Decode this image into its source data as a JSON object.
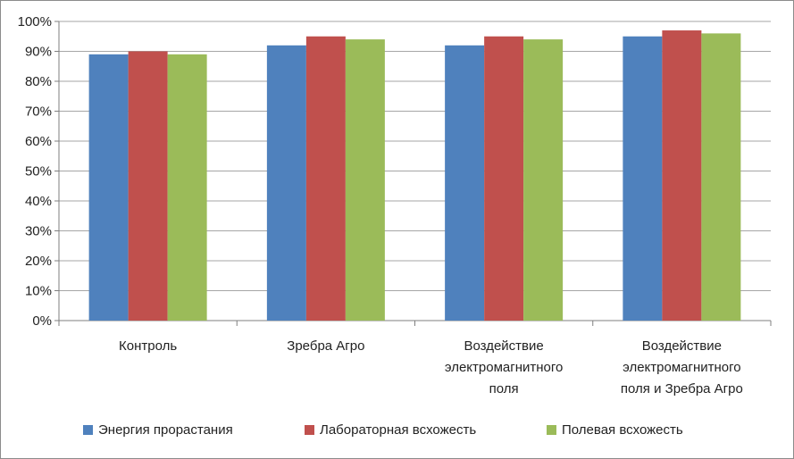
{
  "chart_data": {
    "type": "bar",
    "categories": [
      [
        "Контроль"
      ],
      [
        "Зребра Агро"
      ],
      [
        "Воздействие",
        "электромагнитного",
        "поля"
      ],
      [
        "Воздействие",
        "электромагнитного",
        "поля и Зребра Агро"
      ]
    ],
    "series": [
      {
        "name": "Энергия прорастания",
        "color": "#4f81bd",
        "values": [
          89,
          92,
          92,
          95
        ]
      },
      {
        "name": "Лабораторная всхожесть",
        "color": "#c0504d",
        "values": [
          90,
          95,
          95,
          97
        ]
      },
      {
        "name": "Полевая всхожесть",
        "color": "#9bbb59",
        "values": [
          89,
          94,
          94,
          96
        ]
      }
    ],
    "ylim": [
      0,
      100
    ],
    "yticks": [
      "0%",
      "10%",
      "20%",
      "30%",
      "40%",
      "50%",
      "60%",
      "70%",
      "80%",
      "90%",
      "100%"
    ],
    "grid": true,
    "legend": "bottom",
    "title": "",
    "xlabel": "",
    "ylabel": ""
  }
}
